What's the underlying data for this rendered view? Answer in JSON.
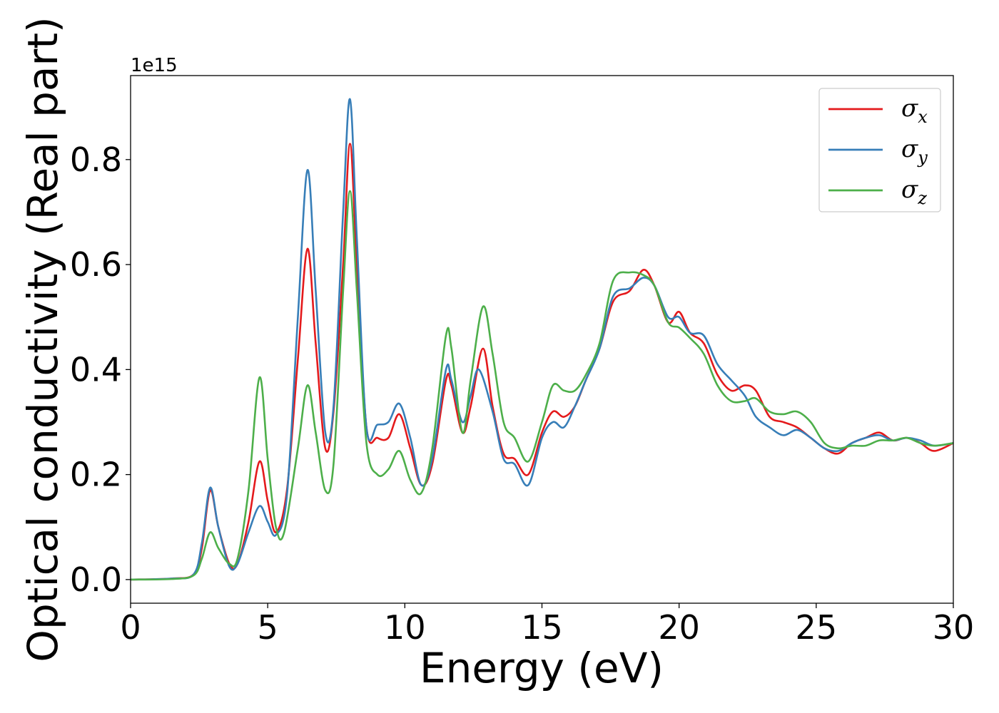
{
  "chart_data": {
    "type": "line",
    "title": "",
    "xlabel": "Energy (eV)",
    "ylabel": "Optical conductivity (Real part)",
    "y_offset_label": "1e15",
    "xlim": [
      0,
      30
    ],
    "ylim": [
      -0.045,
      0.96
    ],
    "x_ticks": [
      0,
      5,
      10,
      15,
      20,
      25,
      30
    ],
    "x_tick_labels": [
      "0",
      "5",
      "10",
      "15",
      "20",
      "25",
      "30"
    ],
    "y_ticks": [
      0.0,
      0.2,
      0.4,
      0.6,
      0.8
    ],
    "y_tick_labels": [
      "0.0",
      "0.2",
      "0.4",
      "0.6",
      "0.8"
    ],
    "grid": false,
    "legend_position": "top-right",
    "series": [
      {
        "name": "σx",
        "symbol": "σ",
        "subscript": "x",
        "color": "#e41a1c",
        "points": [
          [
            0,
            0
          ],
          [
            1.5,
            0.002
          ],
          [
            2.3,
            0.01
          ],
          [
            2.6,
            0.06
          ],
          [
            2.9,
            0.17
          ],
          [
            3.2,
            0.1
          ],
          [
            3.6,
            0.03
          ],
          [
            3.9,
            0.03
          ],
          [
            4.3,
            0.11
          ],
          [
            4.7,
            0.225
          ],
          [
            5.0,
            0.15
          ],
          [
            5.3,
            0.09
          ],
          [
            5.7,
            0.17
          ],
          [
            6.1,
            0.42
          ],
          [
            6.45,
            0.63
          ],
          [
            6.75,
            0.45
          ],
          [
            7.1,
            0.25
          ],
          [
            7.4,
            0.32
          ],
          [
            7.75,
            0.6
          ],
          [
            8.0,
            0.83
          ],
          [
            8.25,
            0.6
          ],
          [
            8.6,
            0.29
          ],
          [
            9.0,
            0.27
          ],
          [
            9.4,
            0.27
          ],
          [
            9.8,
            0.315
          ],
          [
            10.2,
            0.25
          ],
          [
            10.6,
            0.18
          ],
          [
            11.0,
            0.22
          ],
          [
            11.5,
            0.38
          ],
          [
            11.7,
            0.37
          ],
          [
            12.1,
            0.28
          ],
          [
            12.4,
            0.33
          ],
          [
            12.85,
            0.44
          ],
          [
            13.2,
            0.33
          ],
          [
            13.6,
            0.24
          ],
          [
            14.0,
            0.23
          ],
          [
            14.5,
            0.2
          ],
          [
            15.0,
            0.28
          ],
          [
            15.4,
            0.32
          ],
          [
            15.8,
            0.31
          ],
          [
            16.2,
            0.33
          ],
          [
            16.6,
            0.38
          ],
          [
            17.1,
            0.44
          ],
          [
            17.6,
            0.53
          ],
          [
            18.2,
            0.55
          ],
          [
            18.7,
            0.59
          ],
          [
            19.1,
            0.56
          ],
          [
            19.6,
            0.49
          ],
          [
            20.0,
            0.51
          ],
          [
            20.4,
            0.47
          ],
          [
            20.9,
            0.45
          ],
          [
            21.4,
            0.39
          ],
          [
            21.9,
            0.36
          ],
          [
            22.4,
            0.37
          ],
          [
            22.8,
            0.36
          ],
          [
            23.3,
            0.31
          ],
          [
            23.8,
            0.3
          ],
          [
            24.3,
            0.29
          ],
          [
            24.8,
            0.27
          ],
          [
            25.3,
            0.25
          ],
          [
            25.8,
            0.24
          ],
          [
            26.3,
            0.26
          ],
          [
            26.8,
            0.27
          ],
          [
            27.3,
            0.28
          ],
          [
            27.8,
            0.265
          ],
          [
            28.3,
            0.27
          ],
          [
            28.8,
            0.26
          ],
          [
            29.3,
            0.245
          ],
          [
            30.0,
            0.26
          ]
        ]
      },
      {
        "name": "σy",
        "symbol": "σ",
        "subscript": "y",
        "color": "#377eb8",
        "points": [
          [
            0,
            0
          ],
          [
            1.5,
            0.002
          ],
          [
            2.3,
            0.01
          ],
          [
            2.6,
            0.07
          ],
          [
            2.9,
            0.175
          ],
          [
            3.2,
            0.1
          ],
          [
            3.6,
            0.025
          ],
          [
            3.9,
            0.03
          ],
          [
            4.3,
            0.09
          ],
          [
            4.7,
            0.14
          ],
          [
            5.0,
            0.11
          ],
          [
            5.3,
            0.085
          ],
          [
            5.7,
            0.16
          ],
          [
            6.1,
            0.5
          ],
          [
            6.45,
            0.78
          ],
          [
            6.75,
            0.55
          ],
          [
            7.1,
            0.28
          ],
          [
            7.4,
            0.33
          ],
          [
            7.75,
            0.7
          ],
          [
            8.0,
            0.915
          ],
          [
            8.25,
            0.65
          ],
          [
            8.6,
            0.29
          ],
          [
            9.0,
            0.295
          ],
          [
            9.4,
            0.3
          ],
          [
            9.8,
            0.335
          ],
          [
            10.2,
            0.27
          ],
          [
            10.6,
            0.18
          ],
          [
            11.0,
            0.23
          ],
          [
            11.5,
            0.4
          ],
          [
            11.7,
            0.38
          ],
          [
            12.1,
            0.3
          ],
          [
            12.4,
            0.35
          ],
          [
            12.7,
            0.4
          ],
          [
            13.2,
            0.32
          ],
          [
            13.6,
            0.23
          ],
          [
            14.0,
            0.22
          ],
          [
            14.5,
            0.18
          ],
          [
            15.0,
            0.27
          ],
          [
            15.4,
            0.3
          ],
          [
            15.8,
            0.29
          ],
          [
            16.2,
            0.33
          ],
          [
            16.6,
            0.38
          ],
          [
            17.1,
            0.44
          ],
          [
            17.6,
            0.54
          ],
          [
            18.2,
            0.555
          ],
          [
            18.7,
            0.575
          ],
          [
            19.1,
            0.56
          ],
          [
            19.6,
            0.5
          ],
          [
            20.0,
            0.5
          ],
          [
            20.4,
            0.47
          ],
          [
            20.9,
            0.465
          ],
          [
            21.4,
            0.41
          ],
          [
            21.9,
            0.38
          ],
          [
            22.4,
            0.35
          ],
          [
            22.8,
            0.31
          ],
          [
            23.3,
            0.29
          ],
          [
            23.8,
            0.275
          ],
          [
            24.3,
            0.285
          ],
          [
            24.8,
            0.27
          ],
          [
            25.3,
            0.25
          ],
          [
            25.8,
            0.245
          ],
          [
            26.3,
            0.26
          ],
          [
            26.8,
            0.27
          ],
          [
            27.3,
            0.275
          ],
          [
            27.8,
            0.265
          ],
          [
            28.3,
            0.27
          ],
          [
            28.8,
            0.265
          ],
          [
            29.3,
            0.255
          ],
          [
            30.0,
            0.26
          ]
        ]
      },
      {
        "name": "σz",
        "symbol": "σ",
        "subscript": "z",
        "color": "#4daf4a",
        "points": [
          [
            0,
            0
          ],
          [
            1.5,
            0.001
          ],
          [
            2.3,
            0.008
          ],
          [
            2.6,
            0.04
          ],
          [
            2.9,
            0.09
          ],
          [
            3.2,
            0.06
          ],
          [
            3.6,
            0.03
          ],
          [
            3.9,
            0.04
          ],
          [
            4.3,
            0.17
          ],
          [
            4.7,
            0.385
          ],
          [
            5.0,
            0.23
          ],
          [
            5.3,
            0.1
          ],
          [
            5.6,
            0.09
          ],
          [
            6.1,
            0.25
          ],
          [
            6.45,
            0.37
          ],
          [
            6.75,
            0.28
          ],
          [
            7.1,
            0.17
          ],
          [
            7.4,
            0.22
          ],
          [
            7.75,
            0.55
          ],
          [
            8.0,
            0.74
          ],
          [
            8.25,
            0.55
          ],
          [
            8.6,
            0.26
          ],
          [
            9.0,
            0.2
          ],
          [
            9.4,
            0.21
          ],
          [
            9.8,
            0.245
          ],
          [
            10.2,
            0.19
          ],
          [
            10.6,
            0.165
          ],
          [
            11.0,
            0.25
          ],
          [
            11.5,
            0.465
          ],
          [
            11.7,
            0.44
          ],
          [
            12.1,
            0.28
          ],
          [
            12.4,
            0.38
          ],
          [
            12.85,
            0.52
          ],
          [
            13.2,
            0.43
          ],
          [
            13.6,
            0.3
          ],
          [
            14.0,
            0.27
          ],
          [
            14.5,
            0.225
          ],
          [
            15.0,
            0.3
          ],
          [
            15.4,
            0.37
          ],
          [
            15.8,
            0.36
          ],
          [
            16.2,
            0.36
          ],
          [
            16.6,
            0.39
          ],
          [
            17.1,
            0.45
          ],
          [
            17.6,
            0.57
          ],
          [
            18.2,
            0.585
          ],
          [
            18.7,
            0.58
          ],
          [
            19.1,
            0.56
          ],
          [
            19.6,
            0.49
          ],
          [
            20.0,
            0.48
          ],
          [
            20.4,
            0.46
          ],
          [
            20.9,
            0.43
          ],
          [
            21.4,
            0.37
          ],
          [
            21.9,
            0.34
          ],
          [
            22.4,
            0.34
          ],
          [
            22.8,
            0.345
          ],
          [
            23.3,
            0.32
          ],
          [
            23.8,
            0.315
          ],
          [
            24.3,
            0.32
          ],
          [
            24.8,
            0.3
          ],
          [
            25.3,
            0.26
          ],
          [
            25.8,
            0.25
          ],
          [
            26.3,
            0.255
          ],
          [
            26.8,
            0.255
          ],
          [
            27.3,
            0.265
          ],
          [
            27.8,
            0.265
          ],
          [
            28.3,
            0.27
          ],
          [
            28.8,
            0.26
          ],
          [
            29.3,
            0.255
          ],
          [
            30.0,
            0.26
          ]
        ]
      }
    ]
  }
}
